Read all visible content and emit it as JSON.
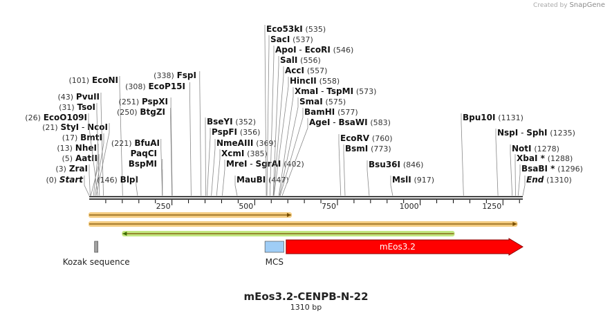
{
  "credit": {
    "prefix": "Created by",
    "brand": "SnapGene"
  },
  "plasmid": {
    "name": "mEos3.2-CENPB-N-22",
    "size_label": "1310 bp",
    "length": 1310
  },
  "ruler": {
    "ticks": [
      250,
      500,
      750,
      1000,
      1250
    ]
  },
  "enzymes": [
    {
      "name": "Start",
      "pos": "(0)",
      "loc": 0,
      "italic": true
    },
    {
      "name": "ZraI",
      "pos": "(3)",
      "loc": 3
    },
    {
      "name": "AatII",
      "pos": "(5)",
      "loc": 5
    },
    {
      "name": "NheI",
      "pos": "(13)",
      "loc": 13
    },
    {
      "name": "BmtI",
      "pos": "(17)",
      "loc": 17
    },
    {
      "name": "StyI",
      "name2": "NcoI",
      "pos": "(21)",
      "loc": 21
    },
    {
      "name": "EcoO109I",
      "pos": "(26)",
      "loc": 26
    },
    {
      "name": "TsoI",
      "pos": "(31)",
      "loc": 31
    },
    {
      "name": "PvuII",
      "pos": "(43)",
      "loc": 43
    },
    {
      "name": "EcoNI",
      "pos": "(101)",
      "loc": 101
    },
    {
      "name": "BlpI",
      "pos": "(146)",
      "loc": 146
    },
    {
      "name": "BfuAI",
      "pos": "(221)",
      "loc": 221
    },
    {
      "name": "PaqCI",
      "pos": "",
      "loc": 221
    },
    {
      "name": "BspMI",
      "pos": "",
      "loc": 221
    },
    {
      "name": "BtgZI",
      "pos": "(250)",
      "loc": 250
    },
    {
      "name": "PspXI",
      "pos": "(251)",
      "loc": 251
    },
    {
      "name": "EcoP15I",
      "pos": "(308)",
      "loc": 308
    },
    {
      "name": "FspI",
      "pos": "(338)",
      "loc": 338
    },
    {
      "name": "BseYI",
      "pos": "(352)",
      "loc": 352
    },
    {
      "name": "PspFI",
      "pos": "(356)",
      "loc": 356
    },
    {
      "name": "NmeAIII",
      "pos": "(369)",
      "loc": 369
    },
    {
      "name": "XcmI",
      "pos": "(385)",
      "loc": 385
    },
    {
      "name": "MreI",
      "name2": "SgrAI",
      "pos": "(402)",
      "loc": 402
    },
    {
      "name": "MauBI",
      "pos": "(447)",
      "loc": 447
    },
    {
      "name": "Eco53kI",
      "pos": "(535)",
      "loc": 535
    },
    {
      "name": "SacI",
      "pos": "(537)",
      "loc": 537
    },
    {
      "name": "ApoI",
      "name2": "EcoRI",
      "pos": "(546)",
      "loc": 546
    },
    {
      "name": "SalI",
      "pos": "(556)",
      "loc": 556
    },
    {
      "name": "AccI",
      "pos": "(557)",
      "loc": 557
    },
    {
      "name": "HincII",
      "pos": "(558)",
      "loc": 558
    },
    {
      "name": "XmaI",
      "name2": "TspMI",
      "pos": "(573)",
      "loc": 573
    },
    {
      "name": "SmaI",
      "pos": "(575)",
      "loc": 575
    },
    {
      "name": "BamHI",
      "pos": "(577)",
      "loc": 577
    },
    {
      "name": "AgeI",
      "name2": "BsaWI",
      "pos": "(583)",
      "loc": 583
    },
    {
      "name": "EcoRV",
      "pos": "(760)",
      "loc": 760
    },
    {
      "name": "BsmI",
      "pos": "(773)",
      "loc": 773
    },
    {
      "name": "Bsu36I",
      "pos": "(846)",
      "loc": 846
    },
    {
      "name": "MslI",
      "pos": "(917)",
      "loc": 917
    },
    {
      "name": "Bpu10I",
      "pos": "(1131)",
      "loc": 1131
    },
    {
      "name": "NspI",
      "name2": "SphI",
      "pos": "(1235)",
      "loc": 1235
    },
    {
      "name": "NotI",
      "pos": "(1278)",
      "loc": 1278
    },
    {
      "name": "XbaI *",
      "pos": "(1288)",
      "loc": 1288
    },
    {
      "name": "BsaBI *",
      "pos": "(1296)",
      "loc": 1296
    },
    {
      "name": "End",
      "pos": "(1310)",
      "loc": 1310,
      "italic": true
    }
  ],
  "tracks": [
    {
      "start": 0,
      "end": 610,
      "dir": "fwd",
      "fill": "#f2c36b"
    },
    {
      "start": 0,
      "end": 1292,
      "dir": "fwd",
      "fill": "#f2c36b"
    },
    {
      "start": 101,
      "end": 1102,
      "dir": "rev",
      "fill": "#b7e36a"
    }
  ],
  "features": [
    {
      "label": "Kozak sequence",
      "start": 16,
      "end": 26,
      "type": "box",
      "color": "#a0a0a0"
    },
    {
      "label": "MCS",
      "start": 531,
      "end": 588,
      "type": "box",
      "color": "#9fcdf6"
    },
    {
      "label": "mEos3.2",
      "start": 595,
      "end": 1310,
      "type": "arrow",
      "color": "#ff0000"
    }
  ],
  "colors": {
    "line": "#000000",
    "text": "#222222",
    "arrow_line": "#7a4f00"
  }
}
